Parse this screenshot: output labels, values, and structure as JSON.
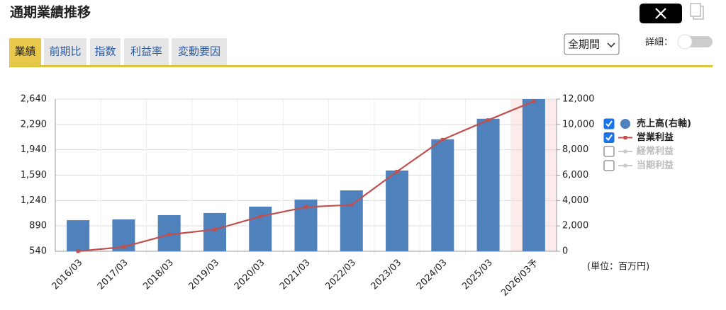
{
  "ui": {
    "page_title": "通期業績推移",
    "tabs": [
      "業績",
      "前期比",
      "指数",
      "利益率",
      "変動要因"
    ],
    "period_select": "全期間",
    "detail_label": "詳細：",
    "unit_note": "(単位：百万円)",
    "inactive_legend": [
      "経常利益",
      "当期利益"
    ]
  },
  "chart_data": {
    "type": "bar",
    "categories": [
      "2016/03",
      "2017/03",
      "2018/03",
      "2019/03",
      "2020/03",
      "2021/03",
      "2022/03",
      "2023/03",
      "2024/03",
      "2025/03",
      "2026/03予"
    ],
    "series": [
      {
        "name": "売上高(右軸)",
        "color": "#4f81bd",
        "type": "bar",
        "axis": "y2",
        "values": [
          2450,
          2510,
          2850,
          3020,
          3520,
          4080,
          4800,
          6370,
          8830,
          10450,
          12000
        ]
      },
      {
        "name": "営業利益",
        "color": "#c0504d",
        "type": "line",
        "values": [
          540,
          600,
          770,
          840,
          1020,
          1150,
          1180,
          1640,
          2080,
          2350,
          2610
        ]
      }
    ],
    "ylim": [
      540,
      2640
    ],
    "yticks": [
      540,
      890,
      {
        "value": 1240,
        "label": "1,240"
      },
      {
        "value": 1590,
        "label": "1,590"
      },
      {
        "value": 1940,
        "label": "1,940"
      },
      {
        "value": 2290,
        "label": "2,290"
      },
      {
        "value": 2640,
        "label": "2,640"
      }
    ],
    "y2lim": [
      0,
      12000
    ],
    "y2ticks": [
      0,
      {
        "value": 2000,
        "label": "2,000"
      },
      {
        "value": 4000,
        "label": "4,000"
      },
      {
        "value": 6000,
        "label": "6,000"
      },
      {
        "value": 8000,
        "label": "8,000"
      },
      {
        "value": 10000,
        "label": "10,000"
      },
      {
        "value": 12000,
        "label": "12,000"
      }
    ],
    "grid": true
  }
}
